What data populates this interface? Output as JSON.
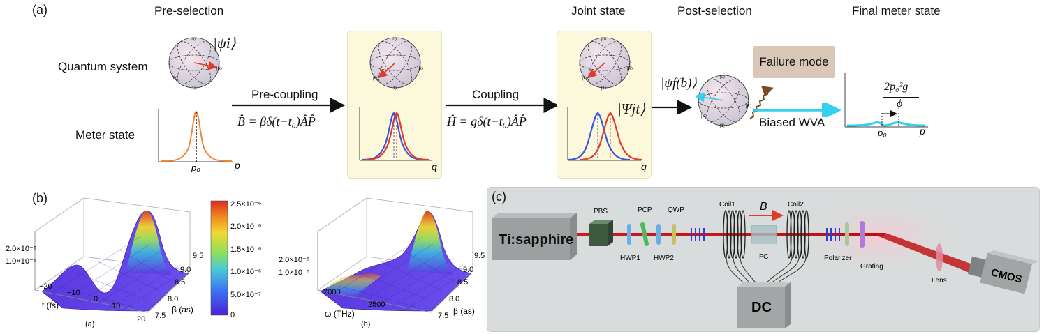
{
  "panel_a": {
    "label": "(a)",
    "headings": {
      "preselection": "Pre-selection",
      "joint": "Joint state",
      "postselection": "Post-selection",
      "final": "Final meter state"
    },
    "row_labels": {
      "quantum": "Quantum system",
      "meter": "Meter state"
    },
    "psi_i": "|ψi⟩",
    "psi_f": "|ψf(b)⟩",
    "Psi_jt": "|Ψjt⟩",
    "precoupling_label": "Pre-coupling",
    "precoupling_eq": "B̂ = βδ(t−t₀)ÂP̂",
    "coupling_label": "Coupling",
    "coupling_eq": "Ĥ = gδ(t−t₀)ÂP̂",
    "failure_mode": "Failure mode",
    "biased_wva": "Biased WVA",
    "shift_numerator": "2p₀²g",
    "shift_denominator": "ϕ",
    "axis_p": "p",
    "axis_q": "q",
    "p0": "p₀",
    "bloch_labels": {
      "zero": "|0⟩",
      "one": "|1⟩",
      "r": "|R⟩",
      "d": "|D⟩"
    }
  },
  "panel_b": {
    "label": "(b)",
    "plot_a": {
      "sublabel": "(a)",
      "xlabel": "t (fs)",
      "ylabel": "β (as)",
      "xticks": [
        "−20",
        "−10",
        "0",
        "10",
        "20"
      ],
      "yticks": [
        "9.5",
        "9.0",
        "8.5",
        "8.0",
        "7.5"
      ],
      "zticks": [
        "2.0×10⁻⁶",
        "1.0×10⁻⁶"
      ]
    },
    "plot_b": {
      "sublabel": "(b)",
      "xlabel": "ω (THz)",
      "ylabel": "β (as)",
      "xticks": [
        "2000",
        "2500"
      ],
      "yticks": [
        "9.5",
        "9.0",
        "8.5",
        "8.0",
        "7.5"
      ],
      "zticks": [
        "2.0×10⁻⁵",
        "1.0×10⁻⁵"
      ]
    },
    "colorbar_ticks": [
      "2.5×10⁻⁶",
      "2.0×10⁻⁶",
      "1.5×10⁻⁶",
      "1.0×10⁻⁶",
      "5.0×10⁻⁷",
      "0"
    ]
  },
  "panel_c": {
    "label": "(c)",
    "laser": "Ti:sapphire",
    "pbs": "PBS",
    "pcp": "PCP",
    "qwp": "QWP",
    "hwp1": "HWP1",
    "hwp2": "HWP2",
    "coil1": "Coil1",
    "coil2": "Coil2",
    "field": "B",
    "fc": "FC",
    "dc": "DC",
    "polarizer": "Polarizer",
    "grating": "Grating",
    "lens": "Lens",
    "camera": "CMOS"
  },
  "colors": {
    "blue": "#3a55d8",
    "red": "#e03a2a",
    "orange": "#f0883a",
    "cyan": "#34d0f0",
    "panel": "#fbf8dc"
  }
}
